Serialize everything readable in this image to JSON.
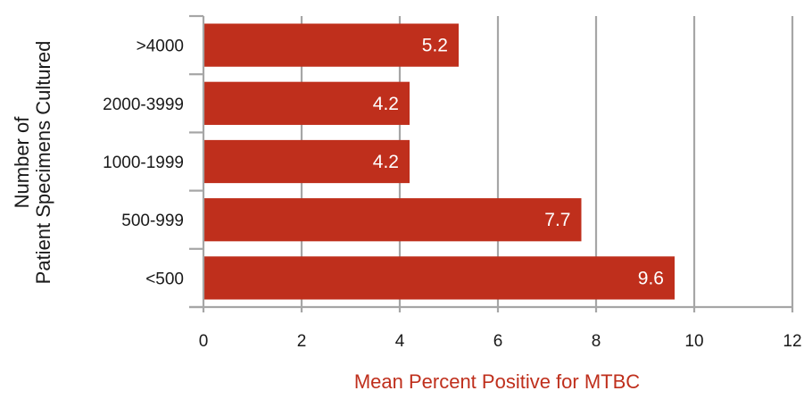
{
  "chart_data": {
    "type": "bar",
    "orientation": "horizontal",
    "categories": [
      ">4000",
      "2000-3999",
      "1000-1999",
      "500-999",
      "<500"
    ],
    "values": [
      5.2,
      4.2,
      4.2,
      7.7,
      9.6
    ],
    "data_labels": [
      "5.2",
      "4.2",
      "4.2",
      "7.7",
      "9.6"
    ],
    "xlabel": "Mean Percent Positive for MTBC",
    "ylabel_lines": [
      "Number of",
      "Patient Specimens Cultured"
    ],
    "xlim": [
      0,
      12
    ],
    "xticks": [
      0,
      2,
      4,
      6,
      8,
      10,
      12
    ],
    "xtick_labels": [
      "0",
      "2",
      "4",
      "6",
      "8",
      "10",
      "12"
    ],
    "grid": true,
    "legend": "none",
    "colors": {
      "bar": "#bf2f1c",
      "xlabel": "#bf2f1c",
      "grid": "#a6a6a6",
      "axis": "#a6a6a6",
      "text": "#1a1a1a"
    }
  }
}
